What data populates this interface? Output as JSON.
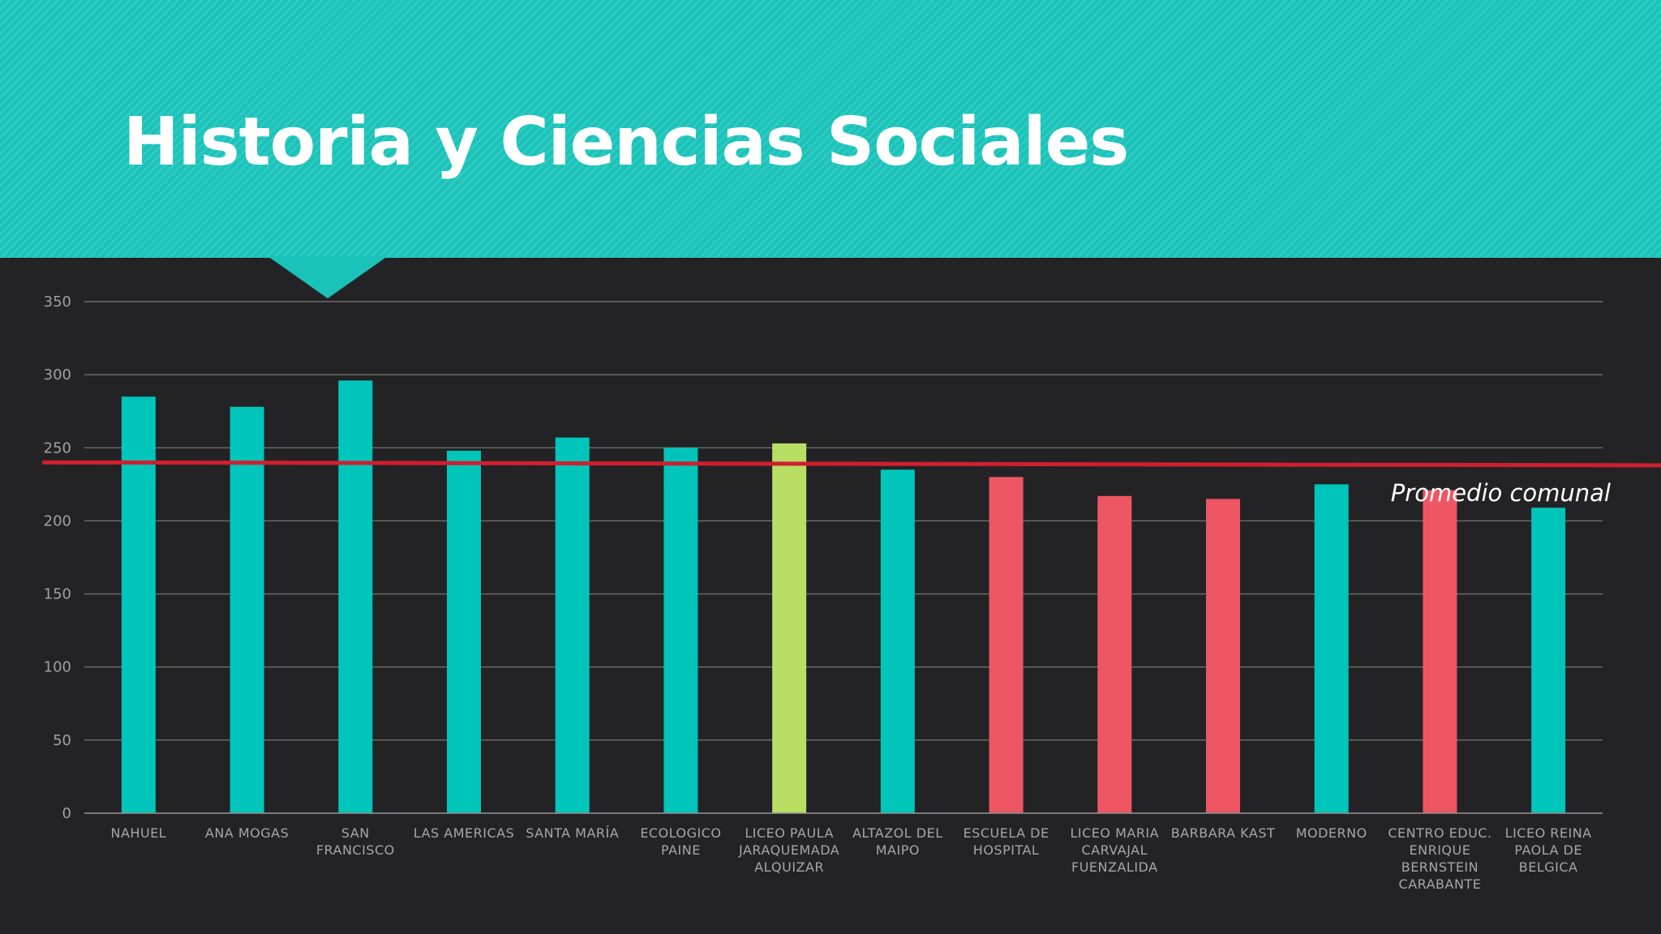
{
  "slide": {
    "title": "Historia y Ciencias Sociales"
  },
  "colors": {
    "header": "#19c3b9",
    "background": "#232325",
    "teal_bar": "#00c5bb",
    "highlight_bar": "#b9de64",
    "low_bar": "#ef5664",
    "average_line": "#d01f2f",
    "grid": "#6e6e6e"
  },
  "chart_data": {
    "type": "bar",
    "title": "Historia y Ciencias Sociales",
    "xlabel": "",
    "ylabel": "",
    "ylim": [
      0,
      350
    ],
    "yticks": [
      0,
      50,
      100,
      150,
      200,
      250,
      300,
      350
    ],
    "grid": true,
    "categories": [
      [
        "NAHUEL"
      ],
      [
        "ANA MOGAS"
      ],
      [
        "SAN",
        "FRANCISCO"
      ],
      [
        "LAS AMERICAS"
      ],
      [
        "SANTA MARÍA"
      ],
      [
        "ECOLOGICO",
        "PAINE"
      ],
      [
        "LICEO PAULA",
        "JARAQUEMADA",
        "ALQUIZAR"
      ],
      [
        "ALTAZOL DEL",
        "MAIPO"
      ],
      [
        "ESCUELA DE",
        "HOSPITAL"
      ],
      [
        "LICEO MARIA",
        "CARVAJAL",
        "FUENZALIDA"
      ],
      [
        "BARBARA KAST"
      ],
      [
        "MODERNO"
      ],
      [
        "CENTRO EDUC.",
        "ENRIQUE",
        "BERNSTEIN",
        "CARABANTE"
      ],
      [
        "LICEO REINA",
        "PAOLA DE",
        "BELGICA"
      ]
    ],
    "values": [
      285,
      278,
      296,
      248,
      257,
      250,
      253,
      235,
      230,
      217,
      215,
      225,
      221,
      209
    ],
    "bar_colors": [
      "teal",
      "teal",
      "teal",
      "teal",
      "teal",
      "teal",
      "highlight",
      "teal",
      "low",
      "low",
      "low",
      "teal",
      "low",
      "teal"
    ],
    "reference_line": {
      "label": "Promedio comunal",
      "value_start": 240,
      "value_end": 238
    }
  }
}
